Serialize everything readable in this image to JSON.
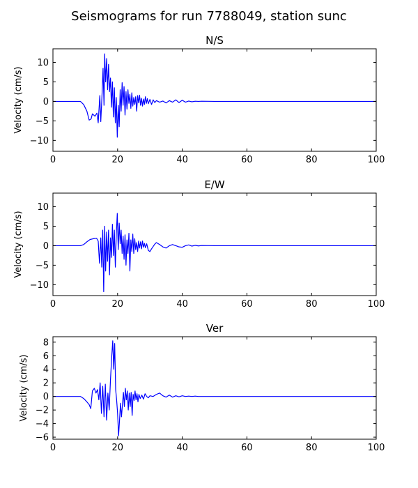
{
  "figure": {
    "suptitle": "Seismograms for run 7788049, station sunc"
  },
  "chart_data": [
    {
      "type": "line",
      "title": "N/S",
      "xlabel": "",
      "ylabel": "Velocity (cm/s)",
      "xlim": [
        0,
        100
      ],
      "ylim": [
        -12.8,
        13.5
      ],
      "xticks": [
        0,
        20,
        40,
        60,
        80,
        100
      ],
      "yticks": [
        -10,
        -5,
        0,
        5,
        10
      ],
      "grid": false,
      "color": "#0000ff",
      "x": [
        0,
        8.5,
        9.5,
        10.5,
        11.2,
        11.8,
        12.2,
        13,
        13.6,
        14,
        14.5,
        14.8,
        15.2,
        15.5,
        15.8,
        16,
        16.3,
        16.6,
        16.9,
        17.2,
        17.5,
        17.8,
        18.1,
        18.4,
        18.7,
        19,
        19.3,
        19.6,
        19.9,
        20.2,
        20.5,
        20.8,
        21.1,
        21.4,
        21.7,
        22,
        22.3,
        22.6,
        22.9,
        23.2,
        23.5,
        23.8,
        24.1,
        24.4,
        24.7,
        25,
        25.3,
        25.6,
        25.9,
        26.2,
        26.5,
        26.8,
        27.1,
        27.4,
        27.7,
        28,
        28.3,
        28.6,
        28.9,
        29.2,
        29.5,
        30,
        30.5,
        31,
        31.5,
        32,
        33,
        34,
        35,
        36,
        37,
        38,
        39,
        40,
        41,
        42,
        43,
        44,
        45,
        46,
        50,
        100
      ],
      "y": [
        0,
        0,
        -0.8,
        -2.5,
        -4.8,
        -4.5,
        -3.2,
        -3.8,
        -3.0,
        -5.5,
        1.5,
        -5.2,
        2.0,
        8.5,
        -1.0,
        12.2,
        5.0,
        11.0,
        3.0,
        9.5,
        2.5,
        6.0,
        -1.5,
        5.0,
        -4.0,
        3.5,
        -5.5,
        1.0,
        -9.2,
        -1.0,
        -6.5,
        3.0,
        -2.5,
        4.8,
        -1.0,
        3.8,
        -3.5,
        2.5,
        -2.0,
        3.0,
        -0.5,
        1.8,
        -1.8,
        2.2,
        -1.2,
        1.0,
        -0.8,
        1.2,
        -2.5,
        1.5,
        -0.4,
        1.6,
        -1.0,
        0.8,
        -1.2,
        0.6,
        -0.8,
        1.2,
        -0.5,
        0.7,
        -0.6,
        0.5,
        -0.8,
        0.4,
        -0.3,
        0.2,
        -0.2,
        0.1,
        -0.4,
        0.2,
        -0.2,
        0.4,
        -0.3,
        0.3,
        -0.2,
        0.1,
        -0.1,
        0.05,
        0,
        0.05,
        0,
        0
      ]
    },
    {
      "type": "line",
      "title": "E/W",
      "xlabel": "",
      "ylabel": "Velocity (cm/s)",
      "xlim": [
        0,
        100
      ],
      "ylim": [
        -12.8,
        13.5
      ],
      "xticks": [
        0,
        20,
        40,
        60,
        80,
        100
      ],
      "yticks": [
        -10,
        -5,
        0,
        5,
        10
      ],
      "grid": false,
      "color": "#0000ff",
      "x": [
        0,
        8.5,
        9.5,
        10.5,
        11.5,
        12.5,
        13.5,
        14,
        14.4,
        14.8,
        15.1,
        15.4,
        15.7,
        16,
        16.3,
        16.6,
        16.9,
        17.2,
        17.5,
        17.8,
        18.1,
        18.4,
        18.7,
        19,
        19.3,
        19.6,
        19.9,
        20.2,
        20.5,
        20.8,
        21.1,
        21.4,
        21.7,
        22,
        22.3,
        22.6,
        22.9,
        23.2,
        23.5,
        23.8,
        24.1,
        24.4,
        24.7,
        25,
        25.3,
        25.6,
        25.9,
        26.2,
        26.5,
        26.8,
        27.1,
        27.4,
        27.7,
        28,
        28.3,
        28.6,
        29,
        29.5,
        30,
        30.5,
        31,
        31.5,
        32,
        33,
        34,
        35,
        36,
        37,
        38,
        39,
        40,
        41,
        42,
        43,
        44,
        45,
        46,
        50,
        100
      ],
      "y": [
        0,
        0,
        0.3,
        1.0,
        1.6,
        1.8,
        1.9,
        1.2,
        -4.5,
        2.0,
        -5.5,
        4.0,
        -11.8,
        5.0,
        -6.5,
        3.5,
        -4.0,
        4.0,
        -7.5,
        2.0,
        -3.0,
        5.5,
        -2.5,
        4.0,
        -5.5,
        3.0,
        8.3,
        -1.0,
        5.8,
        0.5,
        4.0,
        -2.0,
        2.5,
        -3.5,
        2.8,
        -5.0,
        1.5,
        -2.0,
        3.2,
        -6.5,
        1.5,
        -1.5,
        3.0,
        -2.0,
        1.8,
        -1.0,
        0.8,
        -1.5,
        1.2,
        -0.6,
        1.0,
        -0.8,
        1.2,
        -0.4,
        0.6,
        -0.5,
        0.5,
        -1.2,
        -1.5,
        -0.8,
        -0.2,
        0.4,
        0.8,
        0.3,
        -0.3,
        -0.6,
        0.0,
        0.3,
        0.0,
        -0.3,
        -0.4,
        0.0,
        0.2,
        -0.1,
        0.1,
        -0.05,
        0.05,
        0,
        0
      ]
    },
    {
      "type": "line",
      "title": "Ver",
      "xlabel": "",
      "ylabel": "Velocity (cm/s)",
      "xlim": [
        0,
        100
      ],
      "ylim": [
        -6.3,
        8.8
      ],
      "xticks": [
        0,
        20,
        40,
        60,
        80,
        100
      ],
      "yticks": [
        -6,
        -4,
        -2,
        0,
        2,
        4,
        6,
        8
      ],
      "grid": false,
      "color": "#0000ff",
      "x": [
        0,
        8.5,
        9.5,
        10.5,
        11.2,
        11.7,
        12.2,
        12.8,
        13.3,
        13.8,
        14.2,
        14.6,
        15,
        15.4,
        15.8,
        16.2,
        16.6,
        17,
        17.4,
        17.8,
        18.2,
        18.5,
        18.8,
        19.1,
        19.4,
        19.7,
        20,
        20.3,
        20.6,
        20.9,
        21.2,
        21.5,
        21.8,
        22.1,
        22.4,
        22.7,
        23,
        23.3,
        23.6,
        23.9,
        24.2,
        24.5,
        24.8,
        25.1,
        25.4,
        25.7,
        26,
        26.3,
        26.6,
        27,
        27.5,
        28,
        28.5,
        29,
        29.5,
        30,
        31,
        32,
        33,
        34,
        35,
        36,
        37,
        38,
        39,
        40,
        41,
        42,
        43,
        44,
        45,
        50,
        100
      ],
      "y": [
        0,
        0,
        -0.3,
        -0.8,
        -1.2,
        -1.8,
        0.8,
        1.2,
        0.5,
        1.0,
        -0.5,
        2.0,
        -2.5,
        1.5,
        -3.0,
        1.8,
        -3.5,
        0.5,
        -2.0,
        2.5,
        6.0,
        8.2,
        4.0,
        7.8,
        1.0,
        -0.5,
        -2.5,
        -5.8,
        -3.5,
        -1.0,
        -3.0,
        -1.2,
        0.6,
        -1.5,
        1.2,
        -0.5,
        0.8,
        -2.0,
        0.5,
        -1.5,
        0.6,
        -2.8,
        0.3,
        -0.6,
        0.8,
        -0.5,
        0.4,
        -0.8,
        0.3,
        -0.3,
        0.2,
        -0.4,
        0.4,
        0.0,
        -0.2,
        0.1,
        0.0,
        0.3,
        0.5,
        0.1,
        -0.1,
        0.2,
        -0.1,
        0.1,
        -0.05,
        0.1,
        0,
        0.05,
        0,
        0.05,
        0,
        0,
        0
      ]
    }
  ]
}
